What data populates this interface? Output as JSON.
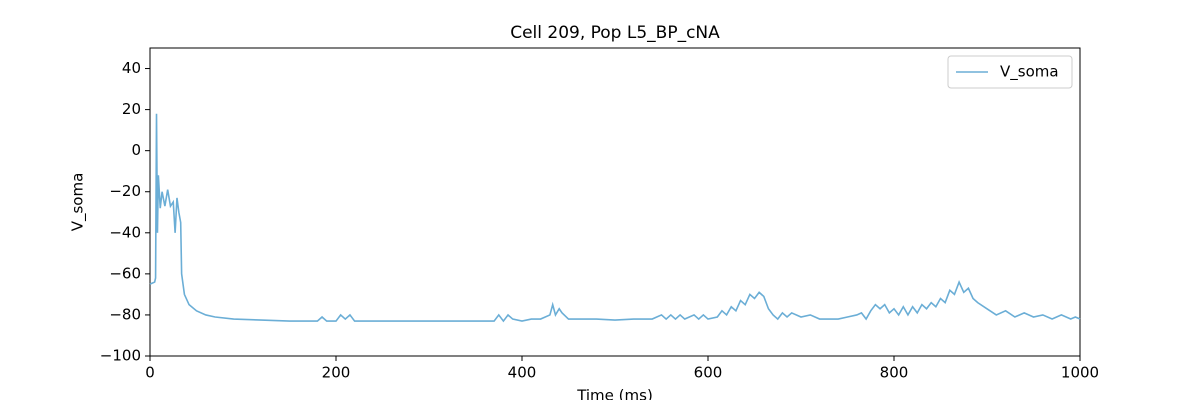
{
  "chart_data": {
    "type": "line",
    "title": "Cell 209, Pop L5_BP_cNA",
    "x_label": "Time (ms)",
    "y_label": "V_soma",
    "x": [
      0,
      5,
      6,
      7,
      8,
      9,
      11,
      13,
      16,
      19,
      22,
      25,
      27,
      29,
      31,
      33,
      34,
      37,
      42,
      50,
      60,
      70,
      90,
      120,
      150,
      180,
      185,
      190,
      200,
      205,
      210,
      215,
      220,
      300,
      350,
      370,
      375,
      380,
      385,
      390,
      400,
      410,
      420,
      430,
      433,
      436,
      440,
      443,
      450,
      480,
      500,
      520,
      540,
      550,
      555,
      560,
      565,
      570,
      575,
      585,
      590,
      595,
      600,
      610,
      615,
      620,
      625,
      630,
      635,
      640,
      645,
      650,
      655,
      660,
      665,
      670,
      675,
      680,
      685,
      690,
      700,
      710,
      720,
      740,
      750,
      760,
      765,
      770,
      775,
      780,
      785,
      790,
      795,
      800,
      805,
      810,
      815,
      820,
      825,
      830,
      835,
      840,
      845,
      850,
      855,
      860,
      865,
      870,
      875,
      880,
      885,
      890,
      900,
      910,
      920,
      930,
      940,
      950,
      960,
      970,
      980,
      990,
      995,
      1000
    ],
    "series": [
      {
        "name": "V_soma",
        "color": "#6baed6",
        "values": [
          -65,
          -64,
          -62,
          18,
          -40,
          -12,
          -28,
          -20,
          -27,
          -19,
          -27,
          -25,
          -40,
          -23,
          -30,
          -35,
          -60,
          -70,
          -75,
          -78,
          -80,
          -81,
          -82,
          -82.5,
          -83,
          -83,
          -81,
          -83,
          -83,
          -80,
          -82,
          -80,
          -83,
          -83,
          -83,
          -83,
          -80,
          -83,
          -80,
          -82,
          -83,
          -82,
          -82,
          -80,
          -75,
          -80,
          -77,
          -79,
          -82,
          -82,
          -82.5,
          -82,
          -82,
          -80,
          -82,
          -80,
          -82,
          -80,
          -82,
          -80,
          -82,
          -80,
          -82,
          -81,
          -78,
          -80,
          -76,
          -78,
          -73,
          -75,
          -70,
          -72,
          -69,
          -71,
          -77,
          -80,
          -82,
          -79,
          -81,
          -79,
          -81,
          -80,
          -82,
          -82,
          -81,
          -80,
          -79,
          -82,
          -78,
          -75,
          -77,
          -75,
          -79,
          -77,
          -80,
          -76,
          -80,
          -76,
          -79,
          -75,
          -77,
          -74,
          -76,
          -72,
          -74,
          -68,
          -70,
          -64,
          -69,
          -67,
          -72,
          -74,
          -77,
          -80,
          -78,
          -81,
          -79,
          -81,
          -80,
          -82,
          -80,
          -82,
          -81,
          -82
        ]
      }
    ],
    "xlim": [
      0,
      1000
    ],
    "xticks": [
      0,
      200,
      400,
      600,
      800,
      1000
    ],
    "ylim": [
      -100,
      50
    ],
    "yticks": [
      {
        "value": -100,
        "label": "−100"
      },
      {
        "value": -80,
        "label": "−80"
      },
      {
        "value": -60,
        "label": "−60"
      },
      {
        "value": -40,
        "label": "−40"
      },
      {
        "value": -20,
        "label": "−20"
      },
      0,
      20,
      40
    ],
    "legend": "upper right"
  }
}
